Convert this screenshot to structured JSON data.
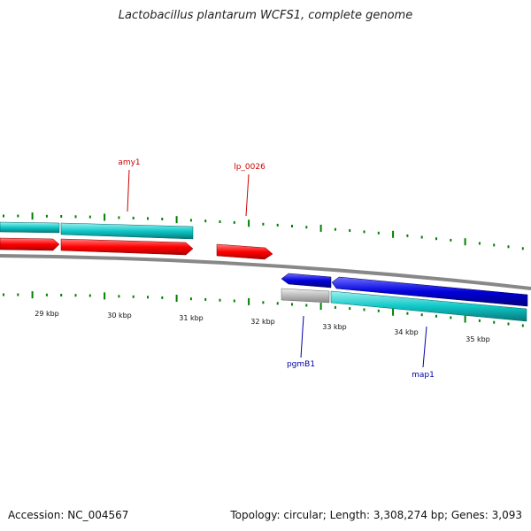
{
  "title": "Lactobacillus plantarum WCFS1, complete genome",
  "footer": {
    "accession": "Accession: NC_004567",
    "summary": "Topology: circular; Length: 3,308,274 bp; Genes: 3,093"
  },
  "colors": {
    "backbone": "#888888",
    "tick": "#008000",
    "forward_cds": "#ff0000",
    "reverse_cds": "#0000dd",
    "gene": "#00c8c8",
    "pseudo": "#b4b4b4",
    "forward_label": "#cc0000",
    "reverse_label": "#0000aa"
  },
  "scale": {
    "unit": "kbp",
    "labels": [
      "29 kbp",
      "30 kbp",
      "31 kbp",
      "32 kbp",
      "33 kbp",
      "34 kbp",
      "35 kbp"
    ]
  },
  "features": [
    {
      "label": "amy1",
      "strand": "forward",
      "color_role": "forward_label"
    },
    {
      "label": "lp_0026",
      "strand": "forward",
      "color_role": "forward_label"
    },
    {
      "label": "pgmB1",
      "strand": "reverse",
      "color_role": "reverse_label"
    },
    {
      "label": "map1",
      "strand": "reverse",
      "color_role": "reverse_label"
    }
  ],
  "tracks": [
    {
      "name": "forward-gene-track",
      "kind": "gene"
    },
    {
      "name": "forward-cds-track",
      "kind": "forward_cds"
    },
    {
      "name": "reverse-cds-track",
      "kind": "reverse_cds"
    },
    {
      "name": "reverse-gene-track",
      "kind": "gene"
    }
  ]
}
